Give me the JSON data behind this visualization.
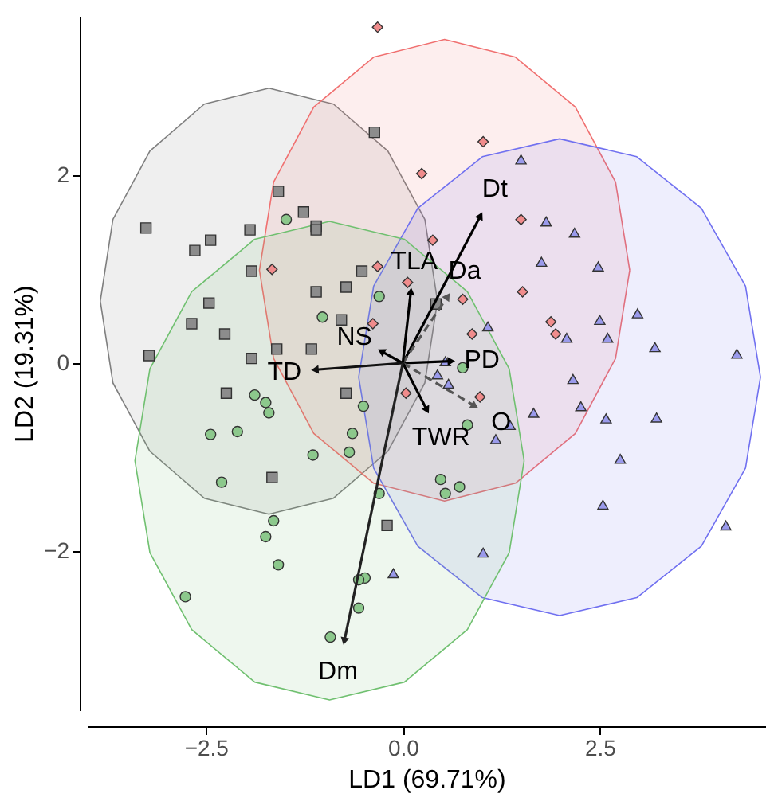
{
  "chart_data": {
    "type": "scatter",
    "xlabel": "LD1 (69.71%)",
    "ylabel": "LD2 (19.31%)",
    "xlim": [
      -4,
      4.6
    ],
    "ylim": [
      -3.7,
      3.7
    ],
    "xticks": [
      {
        "value": -2.5,
        "label": "−2.5"
      },
      {
        "value": 0,
        "label": "0.0"
      },
      2.5
    ],
    "yticks": [
      {
        "value": -2,
        "label": "−2"
      },
      0,
      2
    ],
    "series": [
      {
        "type": "area",
        "color": "#7f7f7f",
        "x": [
          0.44,
          0.28,
          -0.19,
          -0.88,
          -1.7,
          -2.52,
          -3.21,
          -3.68,
          -3.84,
          -3.68,
          -3.21,
          -2.52,
          -1.7,
          -0.88,
          -0.19,
          0.28,
          0.44
        ],
        "values": [
          0.66,
          1.53,
          2.26,
          2.76,
          2.93,
          2.76,
          2.26,
          1.53,
          0.66,
          -0.21,
          -0.94,
          -1.44,
          -1.61,
          -1.44,
          -0.94,
          -0.21,
          0.66
        ]
      },
      {
        "type": "area",
        "color": "#f07070",
        "x": [
          2.88,
          2.7,
          2.19,
          1.43,
          0.53,
          -0.37,
          -1.13,
          -1.64,
          -1.82,
          -1.64,
          -1.13,
          -0.37,
          0.53,
          1.43,
          2.19,
          2.7,
          2.88
        ],
        "values": [
          0.99,
          1.93,
          2.73,
          3.26,
          3.45,
          3.26,
          2.73,
          1.93,
          0.99,
          0.05,
          -0.75,
          -1.28,
          -1.47,
          -1.28,
          -0.75,
          0.05,
          0.99
        ]
      },
      {
        "type": "area",
        "color": "#7070f0",
        "x": [
          4.54,
          4.35,
          3.79,
          2.97,
          1.99,
          1.01,
          0.19,
          -0.37,
          -0.56,
          -0.37,
          0.19,
          1.01,
          1.99,
          2.97,
          3.79,
          4.35,
          4.54
        ],
        "values": [
          -0.15,
          0.82,
          1.65,
          2.2,
          2.39,
          2.2,
          1.65,
          0.82,
          -0.15,
          -1.12,
          -1.95,
          -2.5,
          -2.69,
          -2.5,
          -1.95,
          -1.12,
          -0.15
        ]
      },
      {
        "type": "area",
        "color": "#70c070",
        "x": [
          1.54,
          1.35,
          0.82,
          0.02,
          -0.93,
          -1.88,
          -2.68,
          -3.21,
          -3.4,
          -3.21,
          -2.68,
          -1.88,
          -0.93,
          0.02,
          0.82,
          1.35,
          1.54
        ],
        "values": [
          -1.04,
          -0.06,
          0.76,
          1.32,
          1.51,
          1.32,
          0.76,
          -0.06,
          -1.04,
          -2.02,
          -2.84,
          -3.4,
          -3.59,
          -3.4,
          -2.84,
          -2.02,
          -1.04
        ]
      },
      {
        "marker": "square",
        "color": "#8c8c8c",
        "x": [
          -0.36,
          -1.58,
          -1.26,
          -1.1,
          -1.1,
          -3.26,
          -2.44,
          -2.64,
          -1.94,
          -1.92,
          -0.52,
          -1.1,
          -0.72,
          -0.78,
          -2.46,
          -2.68,
          -2.26,
          -3.22,
          -1.92,
          -1.6,
          -1.16,
          -2.24,
          -0.72,
          -1.66,
          -0.2,
          0.42
        ],
        "values": [
          2.46,
          1.83,
          1.61,
          1.46,
          1.42,
          1.44,
          1.31,
          1.2,
          1.42,
          0.98,
          0.98,
          0.76,
          0.81,
          0.46,
          0.64,
          0.42,
          0.31,
          0.08,
          0.05,
          0.15,
          0.15,
          -0.32,
          -0.32,
          -1.22,
          -1.73,
          0.63
        ]
      },
      {
        "marker": "circle",
        "color": "#8cc88c",
        "x": [
          -1.48,
          -1.02,
          -0.3,
          -1.88,
          -1.74,
          -1.7,
          -2.44,
          -2.1,
          -1.14,
          -0.64,
          -0.68,
          -0.5,
          -2.3,
          -0.3,
          -1.64,
          -1.74,
          -1.58,
          -0.48,
          -0.56,
          -2.76,
          -0.56,
          -0.92,
          0.76,
          0.82,
          0.48,
          0.54,
          0.72
        ],
        "values": [
          1.53,
          0.49,
          0.71,
          -0.34,
          -0.42,
          -0.53,
          -0.76,
          -0.73,
          -0.98,
          -0.75,
          -0.95,
          -0.46,
          -1.27,
          -1.39,
          -1.68,
          -1.85,
          -2.15,
          -2.29,
          -2.31,
          -2.49,
          -2.61,
          -2.92,
          -0.05,
          -0.66,
          -1.24,
          -1.39,
          -1.32
        ]
      },
      {
        "marker": "diamond",
        "color": "#f08c8c",
        "x": [
          -0.32,
          -1.66,
          -0.32,
          0.06,
          -0.38,
          1.02,
          0.24,
          1.5,
          0.38,
          1.52,
          0.76,
          1.88,
          1.94,
          0.88,
          0.04,
          0.98
        ],
        "values": [
          3.58,
          1.0,
          1.03,
          0.86,
          0.42,
          2.36,
          2.02,
          1.53,
          1.31,
          0.76,
          0.68,
          0.44,
          0.31,
          0.31,
          -0.32,
          -0.36
        ]
      },
      {
        "marker": "triangle",
        "color": "#9a9aeb",
        "x": [
          1.5,
          1.82,
          2.18,
          1.76,
          2.48,
          2.98,
          2.5,
          2.6,
          2.08,
          3.2,
          4.24,
          1.08,
          0.54,
          0.44,
          0.58,
          2.16,
          2.26,
          1.66,
          2.58,
          3.22,
          1.36,
          1.18,
          2.76,
          2.54,
          4.1,
          1.02,
          -0.12
        ],
        "values": [
          2.17,
          1.51,
          1.39,
          1.08,
          1.03,
          0.53,
          0.46,
          0.27,
          0.27,
          0.17,
          0.1,
          0.39,
          0.02,
          -0.12,
          -0.22,
          -0.17,
          -0.46,
          -0.53,
          -0.59,
          -0.58,
          -0.66,
          -0.81,
          -1.02,
          -1.51,
          -1.73,
          -2.02,
          -2.24
        ]
      },
      {
        "type": "line",
        "name": "Dt",
        "color": "#000000",
        "x": [
          0,
          0.98
        ],
        "values": [
          0,
          1.56
        ]
      },
      {
        "type": "line",
        "name": "Da",
        "color": "#555555",
        "line_style": "dashed",
        "x": [
          0,
          0.56
        ],
        "values": [
          0,
          0.7
        ]
      },
      {
        "type": "line",
        "name": "TLA",
        "color": "#000000",
        "x": [
          0,
          0.1
        ],
        "values": [
          0,
          0.75
        ]
      },
      {
        "type": "line",
        "name": "NS",
        "color": "#000000",
        "x": [
          0,
          -0.26
        ],
        "values": [
          0,
          0.12
        ]
      },
      {
        "type": "line",
        "name": "TD",
        "color": "#111111",
        "x": [
          0,
          -1.1
        ],
        "values": [
          0,
          -0.07
        ]
      },
      {
        "type": "line",
        "name": "PD",
        "color": "#000000",
        "x": [
          0,
          0.6
        ],
        "values": [
          0,
          0.02
        ]
      },
      {
        "type": "line",
        "name": "O",
        "color": "#555555",
        "line_style": "dashed",
        "x": [
          0,
          0.9
        ],
        "values": [
          0,
          -0.45
        ]
      },
      {
        "type": "line",
        "name": "TWR",
        "color": "#000000",
        "x": [
          0,
          0.3
        ],
        "values": [
          0,
          -0.49
        ]
      },
      {
        "type": "line",
        "name": "Dm",
        "color": "#222222",
        "x": [
          0,
          -0.74
        ],
        "values": [
          0,
          -2.95
        ]
      }
    ]
  }
}
